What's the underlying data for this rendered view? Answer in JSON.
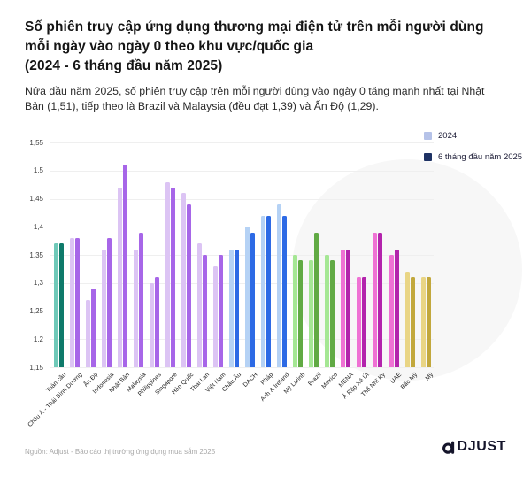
{
  "header": {
    "title": "Số phiên truy cập ứng dụng thương mại điện tử trên mỗi người dùng mỗi ngày vào ngày 0 theo khu vực/quốc gia",
    "title_period": "(2024 - 6 tháng đầu năm 2025)",
    "subtitle": "Nửa đầu năm 2025, số phiên truy cập trên mỗi người dùng vào ngày 0 tăng mạnh nhất tại Nhật Bản (1,51), tiếp theo là Brazil và Malaysia (đều đạt 1,39) và Ấn Độ (1,29)."
  },
  "legend": {
    "items": [
      {
        "label": "2024",
        "color": "#b5c2e8"
      },
      {
        "label": "6 tháng đầu năm 2025",
        "color": "#1e3264"
      }
    ]
  },
  "footer": {
    "source": "Nguồn: Adjust - Báo cáo thị trường ứng dụng mua sắm 2025",
    "logo_text": "DJUST"
  },
  "chart_data": {
    "type": "bar",
    "title": "Số phiên truy cập ứng dụng thương mại điện tử trên mỗi người dùng mỗi ngày vào ngày 0 theo khu vực/quốc gia (2024 - 6 tháng đầu năm 2025)",
    "ylim": [
      1.15,
      1.55
    ],
    "y_ticks": [
      "1,55",
      "1,5",
      "1,45",
      "1,4",
      "1,35",
      "1,3",
      "1,25",
      "1,2",
      "1,15"
    ],
    "grid": true,
    "legend_position": "top-right",
    "decimal_style": "comma",
    "categories": [
      "Toàn cầu",
      "Châu Á - Thái Bình Dương",
      "Ấn Độ",
      "Indonesia",
      "Nhật Bản",
      "Malaysia",
      "Philippines",
      "Singapore",
      "Hàn Quốc",
      "Thái Lan",
      "Việt Nam",
      "Châu Âu",
      "DACH",
      "Pháp",
      "Anh & Ireland",
      "Mỹ Latinh",
      "Brazil",
      "Mexico",
      "MENA",
      "Ả Rập Xê Út",
      "Thổ Nhĩ Kỳ",
      "UAE",
      "Bắc Mỹ",
      "Mỹ"
    ],
    "series": [
      {
        "name": "2024",
        "shade": "light",
        "values": [
          1.37,
          1.38,
          1.27,
          1.36,
          1.47,
          1.36,
          1.3,
          1.48,
          1.46,
          1.37,
          1.33,
          1.36,
          1.4,
          1.42,
          1.44,
          1.35,
          1.34,
          1.35,
          1.36,
          1.31,
          1.39,
          1.35,
          1.32,
          1.31
        ]
      },
      {
        "name": "6 tháng đầu năm 2025",
        "shade": "dark",
        "values": [
          1.37,
          1.38,
          1.29,
          1.38,
          1.51,
          1.39,
          1.31,
          1.47,
          1.44,
          1.35,
          1.35,
          1.36,
          1.39,
          1.42,
          1.42,
          1.34,
          1.39,
          1.34,
          1.36,
          1.31,
          1.39,
          1.36,
          1.31,
          1.31
        ]
      }
    ],
    "region_color_keys": [
      "teal",
      "purple",
      "purple",
      "purple",
      "purple",
      "purple",
      "purple",
      "purple",
      "purple",
      "purple",
      "purple",
      "blue",
      "blue",
      "blue",
      "blue",
      "green",
      "green",
      "green",
      "magenta",
      "magenta",
      "magenta",
      "magenta",
      "yellow",
      "yellow"
    ],
    "colors": {
      "teal": {
        "light": "#6fc9b8",
        "dark": "#0e7a6a"
      },
      "purple": {
        "light": "#dcc4f4",
        "dark": "#a766e8"
      },
      "blue": {
        "light": "#b5d2f5",
        "dark": "#2d6ae5"
      },
      "green": {
        "light": "#a5e794",
        "dark": "#61aa44"
      },
      "magenta": {
        "light": "#ef72d4",
        "dark": "#b324ac"
      },
      "yellow": {
        "light": "#e9d585",
        "dark": "#c2a83d"
      }
    }
  }
}
